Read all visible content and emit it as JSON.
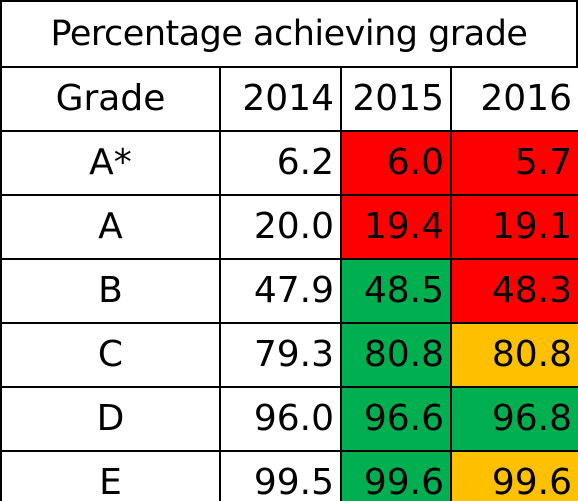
{
  "title": "Percentage achieving grade",
  "colors": {
    "red": "#ff0000",
    "green": "#00b050",
    "amber": "#ffc000",
    "white": "#ffffff"
  },
  "headers": {
    "grade": "Grade",
    "years": [
      "2014",
      "2015",
      "2016"
    ]
  },
  "rows": [
    {
      "grade": "A*",
      "values": [
        "6.2",
        "6.0",
        "5.7"
      ],
      "fills": [
        "white",
        "red",
        "red"
      ]
    },
    {
      "grade": "A",
      "values": [
        "20.0",
        "19.4",
        "19.1"
      ],
      "fills": [
        "white",
        "red",
        "red"
      ]
    },
    {
      "grade": "B",
      "values": [
        "47.9",
        "48.5",
        "48.3"
      ],
      "fills": [
        "white",
        "green",
        "red"
      ]
    },
    {
      "grade": "C",
      "values": [
        "79.3",
        "80.8",
        "80.8"
      ],
      "fills": [
        "white",
        "green",
        "amber"
      ]
    },
    {
      "grade": "D",
      "values": [
        "96.0",
        "96.6",
        "96.8"
      ],
      "fills": [
        "white",
        "green",
        "green"
      ]
    },
    {
      "grade": "E",
      "values": [
        "99.5",
        "99.6",
        "99.6"
      ],
      "fills": [
        "white",
        "green",
        "amber"
      ]
    }
  ]
}
